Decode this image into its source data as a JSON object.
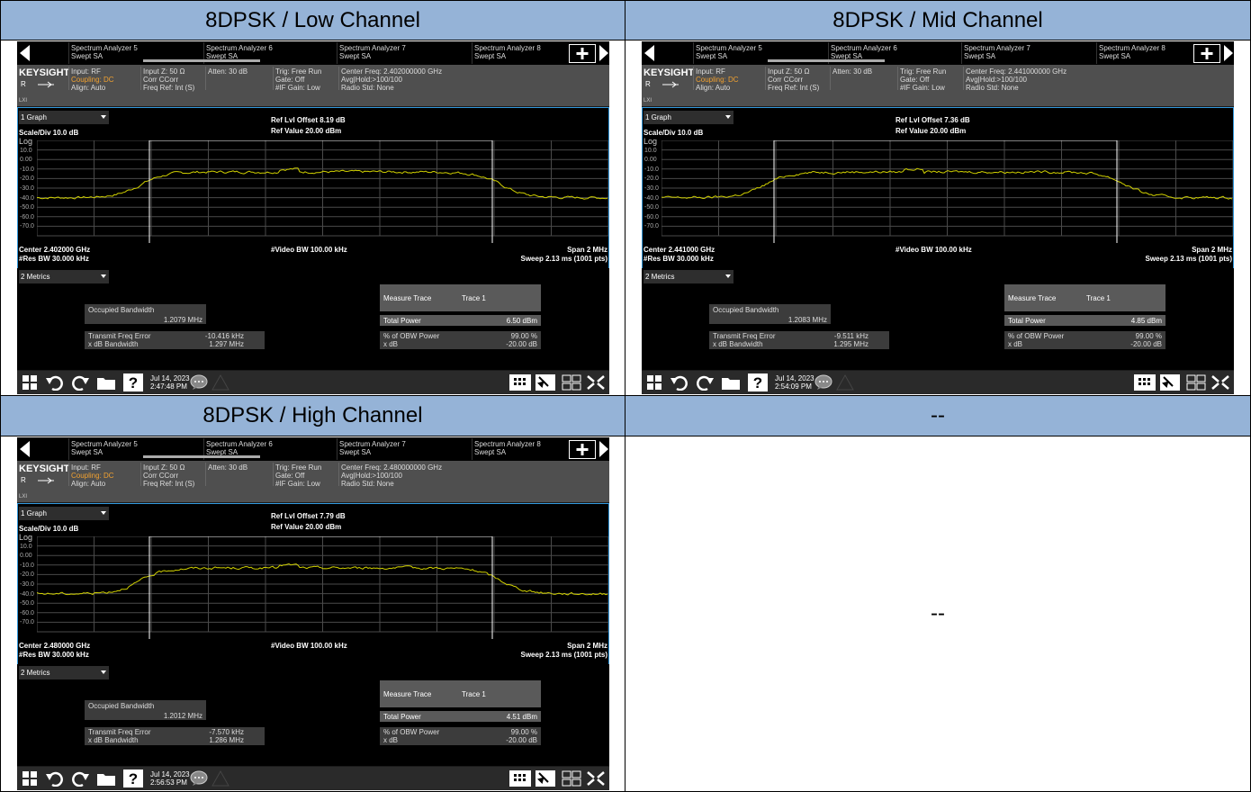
{
  "table": {
    "cells": [
      {
        "heading": "8DPSK / Low Channel",
        "screen": {
          "center_freq_setting": "Center Freq: 2.402000000 GHz",
          "ref_offset": "Ref Lvl Offset 8.19 dB",
          "center": "Center 2.402000 GHz",
          "occupied_bw": "1.2079 MHz",
          "freq_error": "-10.416 kHz",
          "xdb_bw": "1.297 MHz",
          "total_power": "6.50 dBm",
          "time": "2:47:48 PM"
        }
      },
      {
        "heading": "8DPSK / Mid Channel",
        "screen": {
          "center_freq_setting": "Center Freq: 2.441000000 GHz",
          "ref_offset": "Ref Lvl Offset 7.36 dB",
          "center": "Center 2.441000 GHz",
          "occupied_bw": "1.2083 MHz",
          "freq_error": "-9.511 kHz",
          "xdb_bw": "1.295 MHz",
          "total_power": "4.85 dBm",
          "time": "2:54:09 PM"
        }
      },
      {
        "heading": "8DPSK / High Channel",
        "screen": {
          "center_freq_setting": "Center Freq: 2.480000000 GHz",
          "ref_offset": "Ref Lvl Offset 7.79 dB",
          "center": "Center 2.480000 GHz",
          "occupied_bw": "1.2012 MHz",
          "freq_error": "-7.570 kHz",
          "xdb_bw": "1.286 MHz",
          "total_power": "4.51 dBm",
          "time": "2:56:53 PM"
        }
      },
      {
        "heading": "--",
        "body": "--"
      }
    ]
  },
  "analyzer": {
    "tabs": [
      {
        "name": "Spectrum Analyzer 5",
        "mode": "Swept SA"
      },
      {
        "name": "Spectrum Analyzer 6",
        "mode": "Swept SA"
      },
      {
        "name": "Spectrum Analyzer 7",
        "mode": "Swept SA"
      },
      {
        "name": "Spectrum Analyzer 8",
        "mode": "Swept SA"
      }
    ],
    "brand": "KEYSIGHT",
    "remote": "R",
    "lxi": "LXI",
    "input": "Input: RF",
    "coupling": "Coupling: DC",
    "align": "Align: Auto",
    "input_z": "Input Z: 50 Ω",
    "corr": "Corr CCorr",
    "freq_ref": "Freq Ref: Int (S)",
    "atten": "Atten: 30 dB",
    "trig": "Trig: Free Run",
    "gate": "Gate: Off",
    "if_gain": "#IF Gain: Low",
    "avg_hold": "Avg|Hold:>100/100",
    "radio_std": "Radio Std: None",
    "graph_menu": "1 Graph",
    "scale_div": "Scale/Div 10.0 dB",
    "log": "Log",
    "ref_value": "Ref Value 20.00 dBm",
    "y_labels": [
      "10.0",
      "0.00",
      "-10.0",
      "-20.0",
      "-30.0",
      "-40.0",
      "-50.0",
      "-60.0",
      "-70.0"
    ],
    "video_bw": "#Video BW 100.00 kHz",
    "res_bw": "#Res BW 30.000 kHz",
    "span": "Span 2 MHz",
    "sweep": "Sweep 2.13 ms (1001 pts)",
    "metrics_menu": "2 Metrics",
    "occupied_bw_label": "Occupied Bandwidth",
    "freq_error_label": "Transmit Freq Error",
    "xdb_bw_label": "x dB Bandwidth",
    "measure_trace_label": "Measure Trace",
    "measure_trace": "Trace 1",
    "total_power_label": "Total Power",
    "obw_power_label": "% of OBW Power",
    "obw_power": "99.00 %",
    "xdb_label": "x dB",
    "xdb": "-20.00 dB",
    "date": "Jul 14, 2023"
  }
}
